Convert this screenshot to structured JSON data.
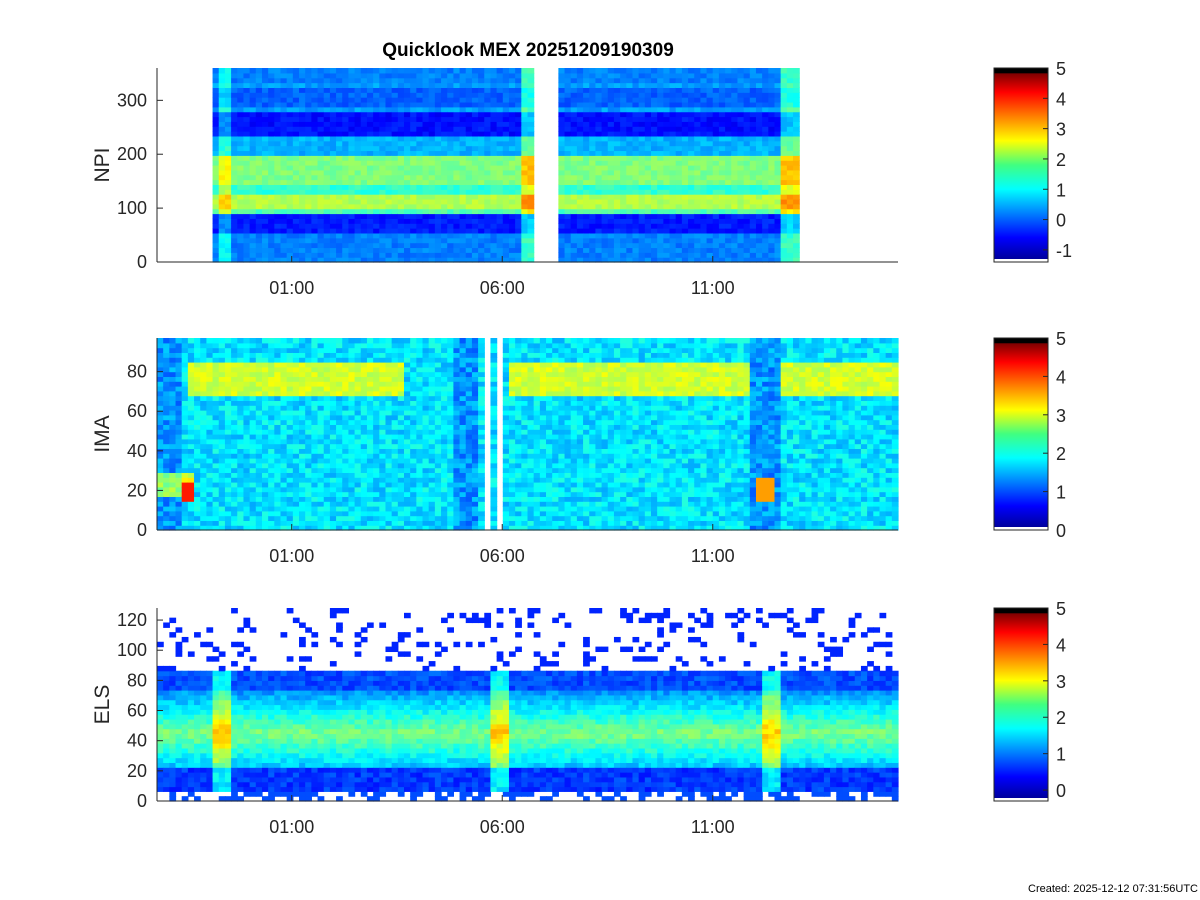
{
  "title": "Quicklook MEX 20251209190309",
  "footer": "Created: 2025-12-12 07:31:56UTC",
  "chart_data": [
    {
      "type": "heatmap",
      "id": "npi",
      "ylabel": "NPI",
      "xlim_hours": [
        -2.2,
        15.4
      ],
      "ylim": [
        0,
        360
      ],
      "yticks": [
        0,
        100,
        200,
        300
      ],
      "xticks": [
        "01:00",
        "06:00",
        "11:00"
      ],
      "xtick_hours": [
        1,
        6,
        11
      ],
      "data_intervals_hours": [
        [
          -0.85,
          6.8
        ],
        [
          7.4,
          13.0
        ]
      ],
      "colorbar": {
        "clim": [
          -1.4,
          5
        ],
        "ticks": [
          -1,
          0,
          1,
          2,
          3,
          4,
          5
        ]
      }
    },
    {
      "type": "heatmap",
      "id": "ima",
      "ylabel": "IMA",
      "xlim_hours": [
        -2.2,
        15.4
      ],
      "ylim": [
        0,
        97
      ],
      "yticks": [
        0,
        20,
        40,
        60,
        80
      ],
      "xticks": [
        "01:00",
        "06:00",
        "11:00"
      ],
      "xtick_hours": [
        1,
        6,
        11
      ],
      "data_intervals_hours": [
        [
          -2.2,
          5.6
        ],
        [
          5.75,
          5.9
        ],
        [
          6.0,
          15.4
        ]
      ],
      "colorbar": {
        "clim": [
          0,
          5
        ],
        "ticks": [
          0,
          1,
          2,
          3,
          4,
          5
        ]
      }
    },
    {
      "type": "heatmap",
      "id": "els",
      "ylabel": "ELS",
      "xlim_hours": [
        -2.2,
        15.4
      ],
      "ylim": [
        0,
        128
      ],
      "yticks": [
        0,
        20,
        40,
        60,
        80,
        100,
        120
      ],
      "xticks": [
        "01:00",
        "06:00",
        "11:00"
      ],
      "xtick_hours": [
        1,
        6,
        11
      ],
      "data_intervals_hours": [
        [
          -2.2,
          15.4
        ]
      ],
      "colorbar": {
        "clim": [
          -0.3,
          5
        ],
        "ticks": [
          0,
          1,
          2,
          3,
          4,
          5
        ]
      }
    }
  ]
}
